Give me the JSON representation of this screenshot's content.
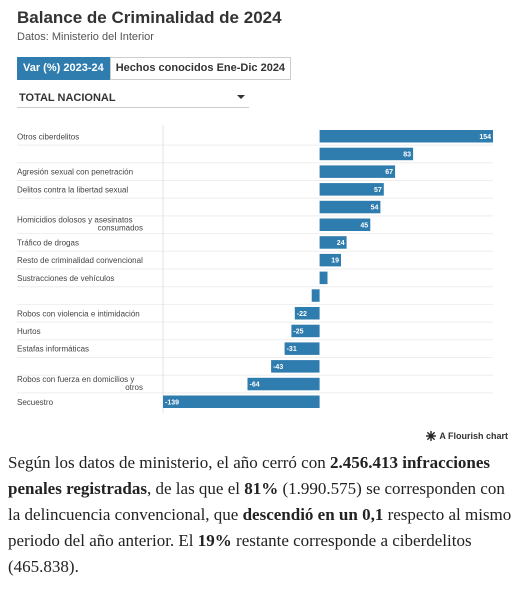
{
  "header": {
    "title": "Balance de Criminalidad de 2024",
    "source": "Datos: Ministerio del Interior"
  },
  "tabs": [
    {
      "label": "Var (%) 2023-24",
      "active": true
    },
    {
      "label": "Hechos conocidos Ene-Dic 2024",
      "active": false
    }
  ],
  "selector": {
    "value": "TOTAL NACIONAL"
  },
  "colors": {
    "bar": "#2f7cae",
    "bar_label": "#ffffff",
    "active_tab": "#2f7cae"
  },
  "chart_data": {
    "type": "bar",
    "orientation": "horizontal",
    "rows": [
      {
        "label": "Otros ciberdelitos",
        "value": 154
      },
      {
        "label": "",
        "value": 83
      },
      {
        "label": "Agresión sexual con penetración",
        "value": 67
      },
      {
        "label": "Delitos contra la libertad sexual",
        "value": 57
      },
      {
        "label": "",
        "value": 54
      },
      {
        "label": "Homicidios dolosos y asesinatos consumados",
        "value": 45
      },
      {
        "label": "Tráfico de drogas",
        "value": 24
      },
      {
        "label": "Resto de criminalidad convencional",
        "value": 19
      },
      {
        "label": "Sustracciones de vehículos",
        "value": 7
      },
      {
        "label": "",
        "value": -7
      },
      {
        "label": "Robos con violencia e intimidación",
        "value": -22
      },
      {
        "label": "Hurtos",
        "value": -25
      },
      {
        "label": "Estafas informáticas",
        "value": -31
      },
      {
        "label": "",
        "value": -43
      },
      {
        "label": "Robos con fuerza en domicilios y otros",
        "value": -64
      },
      {
        "label": "Secuestro",
        "value": -139
      }
    ],
    "xlim": [
      -139,
      154
    ],
    "grid": true
  },
  "credit": "A Flourish chart",
  "article": {
    "p1": "Según los datos de ministerio, el año cerró con ",
    "b1": "2.456.413 infracciones penales registradas",
    "p2": ", de las que el ",
    "b2": "81%",
    "p3": " (1.990.575) se corresponden con la delincuencia convencional, que ",
    "b3": "descendió en un 0,1",
    "p4": " respecto al mismo periodo del año anterior. El ",
    "b4": "19%",
    "p5": " restante corresponde a ciberdelitos (465.838)."
  }
}
